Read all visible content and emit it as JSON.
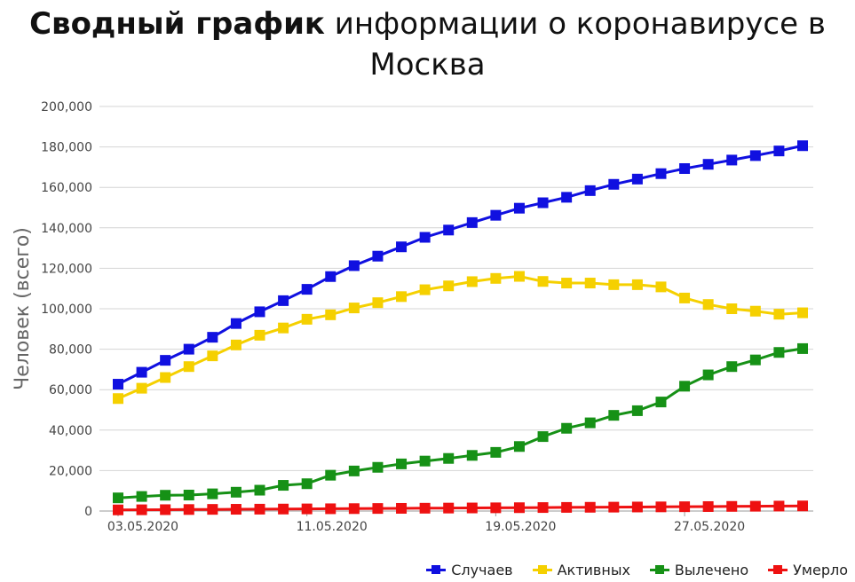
{
  "title": {
    "bold": "Сводный график",
    "rest": " информации о коронавирусе в Москва"
  },
  "chart_data": {
    "type": "line",
    "title": "Сводный график информации о коронавирусе в Москва",
    "ylabel": "Человек (всего)",
    "xlabel": "",
    "ylim": [
      0,
      200000
    ],
    "yticks": [
      "0",
      "20,000",
      "40,000",
      "60,000",
      "80,000",
      "100,000",
      "120,000",
      "140,000",
      "160,000",
      "180,000",
      "200,000"
    ],
    "xtick_labels": [
      {
        "index": 0,
        "label": "03.05.2020"
      },
      {
        "index": 8,
        "label": "11.05.2020"
      },
      {
        "index": 16,
        "label": "19.05.2020"
      },
      {
        "index": 24,
        "label": "27.05.2020"
      }
    ],
    "x": [
      "03.05.2020",
      "04.05.2020",
      "05.05.2020",
      "06.05.2020",
      "07.05.2020",
      "08.05.2020",
      "09.05.2020",
      "10.05.2020",
      "11.05.2020",
      "12.05.2020",
      "13.05.2020",
      "14.05.2020",
      "15.05.2020",
      "16.05.2020",
      "17.05.2020",
      "18.05.2020",
      "19.05.2020",
      "20.05.2020",
      "21.05.2020",
      "22.05.2020",
      "23.05.2020",
      "24.05.2020",
      "25.05.2020",
      "26.05.2020",
      "27.05.2020",
      "28.05.2020",
      "29.05.2020",
      "30.05.2020",
      "31.05.2020",
      "01.06.2020"
    ],
    "grid": true,
    "legend_position": "bottom-right",
    "series": [
      {
        "name": "Случаев",
        "color": "#1010e0",
        "values": [
          62700,
          68600,
          74500,
          80000,
          85900,
          92700,
          98500,
          104000,
          109600,
          115900,
          121300,
          126000,
          130600,
          135300,
          138900,
          142600,
          146200,
          149700,
          152400,
          155100,
          158400,
          161500,
          164100,
          166800,
          169300,
          171400,
          173500,
          175700,
          178000,
          180600
        ]
      },
      {
        "name": "Активных",
        "color": "#f5d000",
        "values": [
          55600,
          60700,
          66000,
          71400,
          76700,
          82100,
          86900,
          90500,
          94800,
          97000,
          100400,
          103000,
          106000,
          109400,
          111300,
          113400,
          115000,
          116000,
          113500,
          112700,
          112700,
          111900,
          111900,
          110800,
          105300,
          102100,
          100000,
          98800,
          97300,
          98000
        ]
      },
      {
        "name": "Вылечено",
        "color": "#169116",
        "values": [
          6500,
          7200,
          7800,
          7900,
          8500,
          9300,
          10300,
          12700,
          13500,
          17700,
          19800,
          21600,
          23300,
          24700,
          26000,
          27500,
          29000,
          31900,
          36800,
          40900,
          43600,
          47300,
          49600,
          53900,
          61700,
          67300,
          71400,
          74700,
          78400,
          80300
        ]
      },
      {
        "name": "Умерло",
        "color": "#ee1111",
        "values": [
          555,
          615,
          675,
          740,
          810,
          865,
          920,
          980,
          1050,
          1120,
          1190,
          1260,
          1320,
          1390,
          1460,
          1520,
          1590,
          1650,
          1720,
          1790,
          1850,
          1920,
          1990,
          2050,
          2130,
          2200,
          2280,
          2360,
          2440,
          2520
        ]
      }
    ]
  }
}
